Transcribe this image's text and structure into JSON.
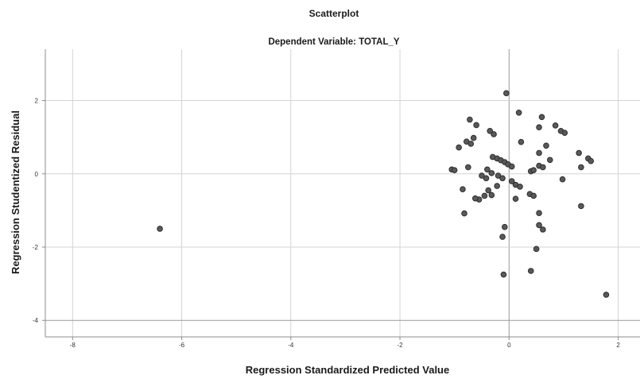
{
  "chart_data": {
    "type": "scatter",
    "title": "Scatterplot",
    "subtitle": "Dependent Variable: TOTAL_Y",
    "xlabel": "Regression Standardized Predicted Value",
    "ylabel": "Regression Studentized Residual",
    "xlim": [
      -8.5,
      2.4
    ],
    "ylim": [
      -4.45,
      3.4
    ],
    "xticks": [
      -8,
      -6,
      -4,
      -2,
      0,
      2
    ],
    "yticks": [
      2,
      0,
      -2,
      -4
    ],
    "xtick_labels": [
      "-8",
      "-6",
      "-4",
      "-2",
      "0",
      "2"
    ],
    "ytick_labels": [
      "2",
      "0",
      "-2",
      "-4"
    ],
    "grid": true,
    "marker_color": "#595959",
    "points": [
      {
        "x": -6.4,
        "y": -1.5
      },
      {
        "x": -0.05,
        "y": 2.2
      },
      {
        "x": 0.18,
        "y": 1.67
      },
      {
        "x": -0.72,
        "y": 1.48
      },
      {
        "x": -0.6,
        "y": 1.33
      },
      {
        "x": 0.6,
        "y": 1.55
      },
      {
        "x": -0.35,
        "y": 1.17
      },
      {
        "x": 0.55,
        "y": 1.27
      },
      {
        "x": 0.85,
        "y": 1.32
      },
      {
        "x": 0.95,
        "y": 1.17
      },
      {
        "x": -0.28,
        "y": 1.08
      },
      {
        "x": 1.02,
        "y": 1.12
      },
      {
        "x": -0.78,
        "y": 0.88
      },
      {
        "x": -0.7,
        "y": 0.82
      },
      {
        "x": -0.92,
        "y": 0.72
      },
      {
        "x": 0.22,
        "y": 0.87
      },
      {
        "x": 0.68,
        "y": 0.77
      },
      {
        "x": 0.55,
        "y": 0.57
      },
      {
        "x": 1.28,
        "y": 0.57
      },
      {
        "x": -0.65,
        "y": 0.98
      },
      {
        "x": 1.45,
        "y": 0.42
      },
      {
        "x": 1.5,
        "y": 0.35
      },
      {
        "x": 0.75,
        "y": 0.38
      },
      {
        "x": -0.3,
        "y": 0.46
      },
      {
        "x": -0.22,
        "y": 0.42
      },
      {
        "x": -0.15,
        "y": 0.37
      },
      {
        "x": -0.08,
        "y": 0.32
      },
      {
        "x": -0.02,
        "y": 0.26
      },
      {
        "x": 0.05,
        "y": 0.2
      },
      {
        "x": 0.55,
        "y": 0.22
      },
      {
        "x": 0.62,
        "y": 0.18
      },
      {
        "x": 1.32,
        "y": 0.18
      },
      {
        "x": 0.4,
        "y": 0.07
      },
      {
        "x": 0.45,
        "y": 0.1
      },
      {
        "x": -1.05,
        "y": 0.12
      },
      {
        "x": -1.0,
        "y": 0.1
      },
      {
        "x": -0.75,
        "y": 0.18
      },
      {
        "x": -0.4,
        "y": 0.12
      },
      {
        "x": -0.32,
        "y": 0.02
      },
      {
        "x": -0.5,
        "y": -0.05
      },
      {
        "x": -0.42,
        "y": -0.12
      },
      {
        "x": -0.2,
        "y": -0.05
      },
      {
        "x": -0.12,
        "y": -0.12
      },
      {
        "x": 0.05,
        "y": -0.2
      },
      {
        "x": 0.12,
        "y": -0.3
      },
      {
        "x": 0.2,
        "y": -0.35
      },
      {
        "x": 0.38,
        "y": -0.55
      },
      {
        "x": 0.45,
        "y": -0.6
      },
      {
        "x": 0.98,
        "y": -0.15
      },
      {
        "x": -0.22,
        "y": -0.33
      },
      {
        "x": -0.38,
        "y": -0.45
      },
      {
        "x": -0.45,
        "y": -0.6
      },
      {
        "x": -0.32,
        "y": -0.58
      },
      {
        "x": -0.55,
        "y": -0.7
      },
      {
        "x": -0.62,
        "y": -0.67
      },
      {
        "x": -0.85,
        "y": -0.42
      },
      {
        "x": 0.12,
        "y": -0.68
      },
      {
        "x": 1.32,
        "y": -0.88
      },
      {
        "x": -0.82,
        "y": -1.08
      },
      {
        "x": 0.55,
        "y": -1.07
      },
      {
        "x": 0.55,
        "y": -1.4
      },
      {
        "x": 0.62,
        "y": -1.52
      },
      {
        "x": -0.08,
        "y": -1.45
      },
      {
        "x": -0.12,
        "y": -1.72
      },
      {
        "x": 0.5,
        "y": -2.05
      },
      {
        "x": -0.1,
        "y": -2.75
      },
      {
        "x": 0.4,
        "y": -2.65
      },
      {
        "x": 1.78,
        "y": -3.3
      }
    ]
  }
}
